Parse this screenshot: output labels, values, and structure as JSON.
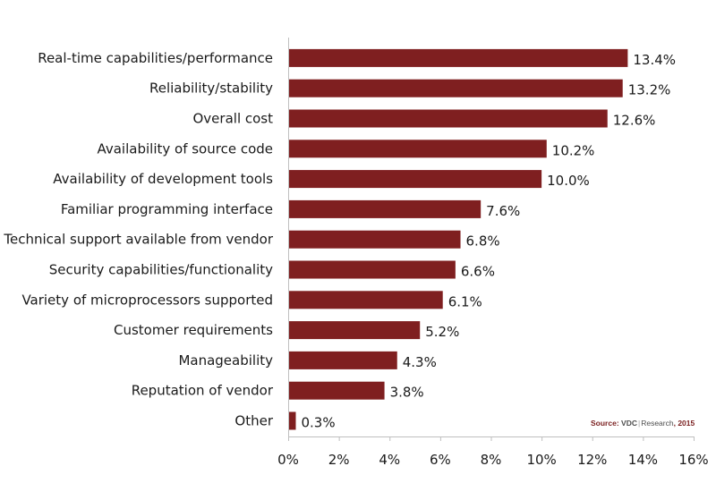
{
  "chart_data": {
    "type": "bar",
    "orientation": "horizontal",
    "categories": [
      "Real-time capabilities/performance",
      "Reliability/stability",
      "Overall cost",
      "Availability of source code",
      "Availability of development tools",
      "Familiar programming interface",
      "Technical support available from vendor",
      "Security capabilities/functionality",
      "Variety of microprocessors supported",
      "Customer requirements",
      "Manageability",
      "Reputation of vendor",
      "Other"
    ],
    "values": [
      13.4,
      13.2,
      12.6,
      10.2,
      10.0,
      7.6,
      6.8,
      6.6,
      6.1,
      5.2,
      4.3,
      3.8,
      0.3
    ],
    "value_labels": [
      "13.4%",
      "13.2%",
      "12.6%",
      "10.2%",
      "10.0%",
      "7.6%",
      "6.8%",
      "6.6%",
      "6.1%",
      "5.2%",
      "4.3%",
      "3.8%",
      "0.3%"
    ],
    "xticks": [
      0,
      2,
      4,
      6,
      8,
      10,
      12,
      14,
      16
    ],
    "xtick_labels": [
      "0%",
      "2%",
      "4%",
      "6%",
      "8%",
      "10%",
      "12%",
      "14%",
      "16%"
    ],
    "xlim": [
      0,
      16
    ],
    "title": "",
    "xlabel": "",
    "ylabel": "",
    "grid": false,
    "legend": false,
    "bar_color": "#7f1f20"
  },
  "source": {
    "prefix": "Source:",
    "brand": "VDC",
    "separator": "|",
    "research": "Research",
    "year": ", 2015"
  }
}
